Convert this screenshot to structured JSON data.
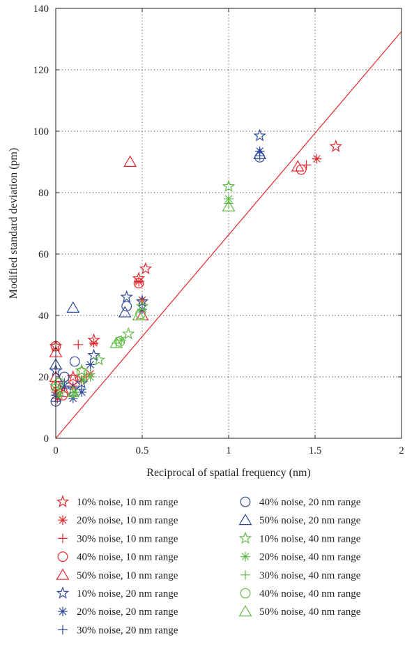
{
  "chart_data": {
    "type": "scatter",
    "title": "",
    "xlabel": "Reciprocal of spatial frequency (nm)",
    "ylabel": "Modified standard deviation (pm)",
    "xlim": [
      0,
      2
    ],
    "ylim": [
      0,
      140
    ],
    "x_ticks": [
      0,
      0.5,
      1,
      1.5,
      2
    ],
    "x_tick_labels": [
      "0",
      "0.5",
      "1",
      "1.5",
      "2"
    ],
    "y_ticks": [
      0,
      20,
      40,
      60,
      80,
      100,
      120,
      140
    ],
    "y_tick_labels": [
      "0",
      "20",
      "40",
      "60",
      "80",
      "100",
      "120",
      "140"
    ],
    "grid": true,
    "legend_placement": "below",
    "colors": {
      "red": "#e8262a",
      "blue": "#2e4b9b",
      "green": "#5fba46"
    },
    "fit_line": {
      "color": "#e8262a",
      "x": [
        0,
        2
      ],
      "y": [
        0,
        132.5
      ]
    },
    "series": [
      {
        "name": "10% noise, 10 nm range",
        "marker": "star",
        "color": "#e8262a",
        "x": [
          0.52,
          1.62,
          0.22,
          0.48,
          0.0,
          0.1,
          0.15,
          0.02
        ],
        "y": [
          55.2,
          95.0,
          32.0,
          52.0,
          30.0,
          20.0,
          22.0,
          16.0
        ]
      },
      {
        "name": "20% noise, 10 nm range",
        "marker": "asterisk",
        "color": "#e8262a",
        "x": [
          1.51,
          0.22,
          0.5,
          0.48,
          0.0,
          0.1,
          0.15,
          0.01,
          0.2
        ],
        "y": [
          91.0,
          31.0,
          45.0,
          51.0,
          15.0,
          17.0,
          19.0,
          13.0,
          21.0
        ]
      },
      {
        "name": "30% noise, 10 nm range",
        "marker": "plus",
        "color": "#e8262a",
        "x": [
          1.45,
          0.13,
          0.0,
          0.1,
          0.05,
          0.18
        ],
        "y": [
          89.0,
          30.5,
          16.0,
          14.0,
          17.0,
          20.0
        ]
      },
      {
        "name": "40% noise, 10 nm range",
        "marker": "circle",
        "color": "#e8262a",
        "x": [
          0.0,
          1.42,
          0.48,
          0.0,
          0.1,
          0.04
        ],
        "y": [
          30.0,
          87.5,
          50.5,
          17.0,
          19.0,
          14.0
        ]
      },
      {
        "name": "50% noise, 10 nm range",
        "marker": "triangle",
        "color": "#e8262a",
        "x": [
          0.0,
          0.43,
          1.4,
          0.5,
          0.0,
          0.05
        ],
        "y": [
          28.0,
          90.0,
          88.5,
          40.0,
          20.0,
          15.0
        ]
      },
      {
        "name": "10% noise, 20 nm range",
        "marker": "star",
        "color": "#2e4b9b",
        "x": [
          1.18,
          0.41,
          0.5,
          0.22,
          0.0,
          0.1,
          0.15
        ],
        "y": [
          98.5,
          46.0,
          44.5,
          27.0,
          22.0,
          16.0,
          18.0
        ]
      },
      {
        "name": "20% noise, 20 nm range",
        "marker": "asterisk",
        "color": "#2e4b9b",
        "x": [
          1.18,
          0.0,
          0.1,
          0.15,
          0.2,
          0.05,
          0.5
        ],
        "y": [
          93.5,
          14.0,
          13.0,
          15.0,
          24.0,
          17.0,
          42.0
        ]
      },
      {
        "name": "30% noise, 20 nm range",
        "marker": "plus",
        "color": "#2e4b9b",
        "x": [
          1.18,
          0.0,
          0.1,
          0.15,
          0.05
        ],
        "y": [
          92.0,
          12.0,
          14.0,
          16.0,
          18.0
        ]
      },
      {
        "name": "40% noise, 20 nm range",
        "marker": "circle",
        "color": "#2e4b9b",
        "x": [
          1.18,
          0.41,
          0.11,
          0.0,
          0.05
        ],
        "y": [
          91.5,
          43.0,
          25.0,
          12.0,
          20.0
        ]
      },
      {
        "name": "50% noise, 20 nm range",
        "marker": "triangle",
        "color": "#2e4b9b",
        "x": [
          0.1,
          1.18,
          0.4,
          0.0
        ],
        "y": [
          42.5,
          92.5,
          41.0,
          24.0
        ]
      },
      {
        "name": "10% noise, 40 nm range",
        "marker": "star",
        "color": "#5fba46",
        "x": [
          1.0,
          0.42,
          0.25,
          0.5,
          0.15,
          0.0
        ],
        "y": [
          82.0,
          34.0,
          25.5,
          43.0,
          22.0,
          17.0
        ]
      },
      {
        "name": "20% noise, 40 nm range",
        "marker": "asterisk",
        "color": "#5fba46",
        "x": [
          1.0,
          0.38,
          0.2,
          0.11,
          0.16,
          0.02
        ],
        "y": [
          78.0,
          32.0,
          20.0,
          15.0,
          19.0,
          14.0
        ]
      },
      {
        "name": "30% noise, 40 nm range",
        "marker": "plus",
        "color": "#5fba46",
        "x": [
          1.0,
          0.35,
          0.1,
          0.2,
          0.03
        ],
        "y": [
          76.5,
          31.0,
          14.0,
          21.0,
          15.0
        ]
      },
      {
        "name": "40% noise, 40 nm range",
        "marker": "circle",
        "color": "#5fba46",
        "x": [
          0.49,
          0.37,
          0.15,
          0.02
        ],
        "y": [
          40.5,
          31.5,
          21.5,
          18.0
        ]
      },
      {
        "name": "50% noise, 40 nm range",
        "marker": "triangle",
        "color": "#5fba46",
        "x": [
          1.0,
          0.35,
          0.1,
          0.48
        ],
        "y": [
          75.5,
          31.0,
          15.0,
          40.0
        ]
      }
    ]
  }
}
